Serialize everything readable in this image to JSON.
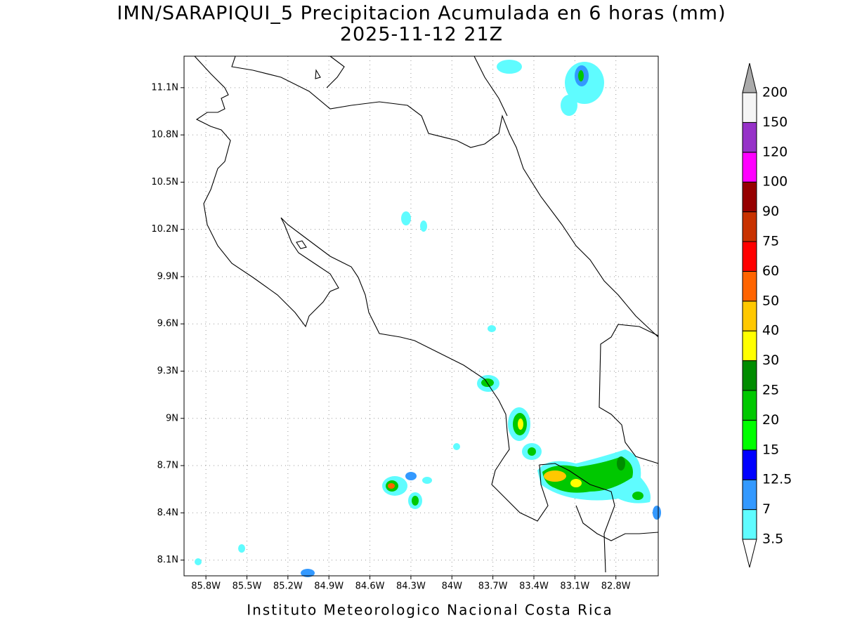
{
  "title": [
    "IMN/SARAPIQUI_5 Precipitacion Acumulada en 6 horas (mm)",
    "2025-11-12 21Z"
  ],
  "footer": "Instituto Meteorologico Nacional Costa Rica",
  "map": {
    "xlim": [
      -85.96,
      -82.49
    ],
    "ylim": [
      8.0,
      11.3
    ],
    "grid": true,
    "xticks": [
      {
        "value": -85.8,
        "label": "85.8W"
      },
      {
        "value": -85.5,
        "label": "85.5W"
      },
      {
        "value": -85.2,
        "label": "85.2W"
      },
      {
        "value": -84.9,
        "label": "84.9W"
      },
      {
        "value": -84.6,
        "label": "84.6W"
      },
      {
        "value": -84.3,
        "label": "84.3W"
      },
      {
        "value": -84.0,
        "label": "84W"
      },
      {
        "value": -83.7,
        "label": "83.7W"
      },
      {
        "value": -83.4,
        "label": "83.4W"
      },
      {
        "value": -83.1,
        "label": "83.1W"
      },
      {
        "value": -82.8,
        "label": "82.8W"
      }
    ],
    "yticks": [
      {
        "value": 8.1,
        "label": "8.1N"
      },
      {
        "value": 8.4,
        "label": "8.4N"
      },
      {
        "value": 8.7,
        "label": "8.7N"
      },
      {
        "value": 9.0,
        "label": "9N"
      },
      {
        "value": 9.3,
        "label": "9.3N"
      },
      {
        "value": 9.6,
        "label": "9.6N"
      },
      {
        "value": 9.9,
        "label": "9.9N"
      },
      {
        "value": 10.2,
        "label": "10.2N"
      },
      {
        "value": 10.5,
        "label": "10.5N"
      },
      {
        "value": 10.8,
        "label": "10.8N"
      },
      {
        "value": 11.1,
        "label": "11.1N"
      }
    ]
  },
  "colorbar": {
    "levels": [
      3.5,
      7,
      12.5,
      15,
      20,
      25,
      30,
      40,
      50,
      60,
      75,
      90,
      100,
      120,
      150,
      200
    ],
    "colors": [
      "#5ffcff",
      "#3399ff",
      "#0000ff",
      "#00ff00",
      "#00c800",
      "#008c00",
      "#ffff00",
      "#ffc800",
      "#ff6400",
      "#ff0000",
      "#c83200",
      "#960000",
      "#ff00ff",
      "#9632c8",
      "#f5f5f5"
    ],
    "under_color": "#ffffff",
    "over_color": "#aaaaaa"
  }
}
